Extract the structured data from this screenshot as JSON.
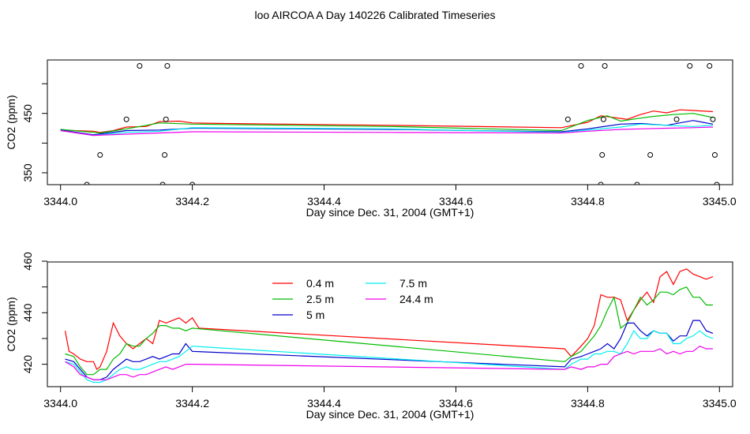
{
  "figure": {
    "title": "loo AIRCOA A  Day 140226  Calibrated Timeseries"
  },
  "chart_data": [
    {
      "type": "line",
      "panel": "top",
      "xlabel": "Day since Dec. 31, 2004 (GMT+1)",
      "ylabel": "CO2 (ppm)",
      "xlim": [
        3343.98,
        3345.02
      ],
      "ylim": [
        330,
        540
      ],
      "xticks": [
        "3344.0",
        "3344.2",
        "3344.4",
        "3344.6",
        "3344.8",
        "3345.0"
      ],
      "yticks": [
        {
          "v": 350,
          "label": "350"
        },
        {
          "v": 400,
          "label": ""
        },
        {
          "v": 450,
          "label": "450"
        },
        {
          "v": 500,
          "label": ""
        }
      ],
      "grid": false,
      "series": [
        {
          "color": "#ff0000",
          "x": [
            3344.0,
            3344.02,
            3344.05,
            3344.06,
            3344.08,
            3344.1,
            3344.13,
            3344.15,
            3344.18,
            3344.2,
            3344.25,
            3344.5,
            3344.76,
            3344.8,
            3344.82,
            3344.84,
            3344.86,
            3344.88,
            3344.9,
            3344.92,
            3344.94,
            3344.96,
            3344.99
          ],
          "y": [
            422,
            421,
            420,
            418,
            421,
            427,
            428,
            436,
            437,
            434,
            433,
            430,
            426,
            435,
            446,
            443,
            440,
            448,
            454,
            451,
            456,
            455,
            453
          ]
        },
        {
          "color": "#00bb00",
          "x": [
            3344.0,
            3344.03,
            3344.06,
            3344.1,
            3344.15,
            3344.2,
            3344.5,
            3344.76,
            3344.8,
            3344.83,
            3344.85,
            3344.88,
            3344.9,
            3344.93,
            3344.96,
            3344.99
          ],
          "y": [
            423,
            420,
            417,
            424,
            434,
            432,
            428,
            421,
            438,
            446,
            437,
            442,
            445,
            448,
            450,
            443
          ]
        },
        {
          "color": "#0000cc",
          "x": [
            3344.0,
            3344.05,
            3344.1,
            3344.15,
            3344.2,
            3344.5,
            3344.76,
            3344.8,
            3344.85,
            3344.88,
            3344.92,
            3344.96,
            3344.99
          ],
          "y": [
            422,
            414,
            421,
            422,
            425,
            423,
            419,
            424,
            432,
            433,
            430,
            438,
            432
          ]
        },
        {
          "color": "#00eeee",
          "x": [
            3344.0,
            3344.05,
            3344.1,
            3344.15,
            3344.2,
            3344.5,
            3344.76,
            3344.8,
            3344.85,
            3344.88,
            3344.92,
            3344.96,
            3344.99
          ],
          "y": [
            421,
            413,
            418,
            420,
            426,
            424,
            418,
            422,
            427,
            432,
            430,
            428,
            430
          ]
        },
        {
          "color": "#ee00ee",
          "x": [
            3344.0,
            3344.05,
            3344.1,
            3344.15,
            3344.2,
            3344.5,
            3344.76,
            3344.8,
            3344.85,
            3344.88,
            3344.92,
            3344.96,
            3344.99
          ],
          "y": [
            421,
            413,
            415,
            417,
            419,
            418,
            417,
            420,
            423,
            424,
            425,
            426,
            427
          ]
        }
      ],
      "points": {
        "x": [
          3344.04,
          3344.06,
          3344.1,
          3344.12,
          3344.155,
          3344.158,
          3344.16,
          3344.162,
          3344.2,
          3344.77,
          3344.79,
          3344.82,
          3344.822,
          3344.824,
          3344.826,
          3344.875,
          3344.895,
          3344.935,
          3344.955,
          3344.985,
          3344.99,
          3344.993,
          3344.996
        ],
        "y": [
          330,
          380,
          440,
          530,
          330,
          380,
          440,
          530,
          330,
          440,
          530,
          330,
          380,
          440,
          530,
          330,
          380,
          440,
          530,
          530,
          440,
          380,
          330
        ]
      }
    },
    {
      "type": "line",
      "panel": "bottom",
      "xlabel": "Day since Dec. 31, 2004 (GMT+1)",
      "ylabel": "CO2 (ppm)",
      "xlim": [
        3343.98,
        3345.02
      ],
      "ylim": [
        411.3,
        459.7
      ],
      "xticks": [
        "3344.0",
        "3344.2",
        "3344.4",
        "3344.6",
        "3344.8",
        "3345.0"
      ],
      "yticks": [
        {
          "v": 420,
          "label": "420"
        },
        {
          "v": 430,
          "label": ""
        },
        {
          "v": 440,
          "label": "440"
        },
        {
          "v": 450,
          "label": ""
        },
        {
          "v": 460,
          "label": "460"
        }
      ],
      "grid": false,
      "legend": {
        "placement": "top-left",
        "entries": [
          {
            "label": "0.4 m",
            "color": "#ff0000"
          },
          {
            "label": "2.5 m",
            "color": "#00bb00"
          },
          {
            "label": "5 m",
            "color": "#0000cc"
          },
          {
            "label": "7.5 m",
            "color": "#00eeee"
          },
          {
            "label": "24.4 m",
            "color": "#ee00ee"
          }
        ]
      },
      "series": [
        {
          "name": "0.4 m",
          "color": "#ff0000",
          "x": [
            3344.007,
            3344.013,
            3344.02,
            3344.03,
            3344.04,
            3344.05,
            3344.055,
            3344.06,
            3344.07,
            3344.08,
            3344.09,
            3344.1,
            3344.11,
            3344.12,
            3344.13,
            3344.14,
            3344.15,
            3344.16,
            3344.17,
            3344.18,
            3344.19,
            3344.2,
            3344.21,
            3344.765,
            3344.775,
            3344.79,
            3344.8,
            3344.81,
            3344.82,
            3344.83,
            3344.84,
            3344.85,
            3344.86,
            3344.87,
            3344.88,
            3344.89,
            3344.9,
            3344.91,
            3344.92,
            3344.93,
            3344.94,
            3344.95,
            3344.96,
            3344.97,
            3344.98,
            3344.99
          ],
          "y": [
            433,
            425,
            424,
            422,
            421,
            421,
            418,
            419,
            425,
            436,
            431,
            428,
            426,
            428,
            430,
            428,
            437,
            436,
            437,
            438,
            436,
            438,
            434,
            426,
            423,
            427,
            430,
            435,
            447,
            446,
            446,
            445,
            437,
            441,
            445,
            448,
            444,
            454,
            456,
            451,
            456,
            457,
            455,
            454,
            453,
            454
          ]
        },
        {
          "name": "2.5 m",
          "color": "#00bb00",
          "x": [
            3344.007,
            3344.02,
            3344.03,
            3344.04,
            3344.05,
            3344.06,
            3344.07,
            3344.08,
            3344.09,
            3344.1,
            3344.11,
            3344.12,
            3344.13,
            3344.14,
            3344.15,
            3344.16,
            3344.17,
            3344.18,
            3344.19,
            3344.2,
            3344.765,
            3344.775,
            3344.79,
            3344.8,
            3344.81,
            3344.82,
            3344.83,
            3344.84,
            3344.85,
            3344.86,
            3344.87,
            3344.88,
            3344.89,
            3344.9,
            3344.91,
            3344.92,
            3344.93,
            3344.94,
            3344.95,
            3344.96,
            3344.97,
            3344.98,
            3344.99
          ],
          "y": [
            424,
            423,
            419,
            416,
            416,
            418,
            418,
            422,
            424,
            428,
            427,
            427,
            430,
            432,
            435,
            435,
            434,
            434,
            433,
            434,
            421,
            423,
            425,
            428,
            431,
            435,
            441,
            446,
            434,
            436,
            441,
            446,
            443,
            445,
            448,
            448,
            447,
            449,
            450,
            446,
            446,
            443,
            443
          ]
        },
        {
          "name": "5 m",
          "color": "#0000cc",
          "x": [
            3344.007,
            3344.02,
            3344.03,
            3344.04,
            3344.05,
            3344.06,
            3344.07,
            3344.08,
            3344.09,
            3344.1,
            3344.11,
            3344.12,
            3344.13,
            3344.14,
            3344.15,
            3344.16,
            3344.17,
            3344.18,
            3344.19,
            3344.2,
            3344.765,
            3344.775,
            3344.79,
            3344.8,
            3344.81,
            3344.82,
            3344.83,
            3344.84,
            3344.85,
            3344.86,
            3344.87,
            3344.88,
            3344.89,
            3344.9,
            3344.91,
            3344.92,
            3344.93,
            3344.94,
            3344.95,
            3344.96,
            3344.97,
            3344.98,
            3344.99
          ],
          "y": [
            422,
            421,
            418,
            415,
            414,
            414,
            415,
            418,
            420,
            422,
            421,
            421,
            422,
            423,
            422,
            423,
            424,
            424,
            428,
            425,
            419,
            422,
            423,
            424,
            425,
            426,
            428,
            426,
            430,
            436,
            436,
            433,
            431,
            433,
            432,
            432,
            429,
            431,
            431,
            437,
            437,
            433,
            432
          ]
        },
        {
          "name": "7.5 m",
          "color": "#00eeee",
          "x": [
            3344.007,
            3344.02,
            3344.03,
            3344.04,
            3344.05,
            3344.06,
            3344.07,
            3344.08,
            3344.09,
            3344.1,
            3344.11,
            3344.12,
            3344.13,
            3344.14,
            3344.15,
            3344.16,
            3344.17,
            3344.18,
            3344.19,
            3344.2,
            3344.765,
            3344.775,
            3344.79,
            3344.8,
            3344.81,
            3344.82,
            3344.83,
            3344.84,
            3344.85,
            3344.86,
            3344.87,
            3344.88,
            3344.89,
            3344.9,
            3344.91,
            3344.92,
            3344.93,
            3344.94,
            3344.95,
            3344.96,
            3344.97,
            3344.98,
            3344.99
          ],
          "y": [
            421,
            420,
            417,
            414,
            413,
            413,
            414,
            416,
            418,
            419,
            418,
            418,
            419,
            420,
            421,
            421,
            422,
            423,
            425,
            427,
            418,
            420,
            422,
            422,
            424,
            424,
            425,
            425,
            424,
            428,
            433,
            430,
            430,
            433,
            432,
            432,
            428,
            428,
            430,
            431,
            433,
            431,
            430
          ]
        },
        {
          "name": "24.4 m",
          "color": "#ee00ee",
          "x": [
            3344.007,
            3344.02,
            3344.03,
            3344.04,
            3344.05,
            3344.06,
            3344.07,
            3344.08,
            3344.09,
            3344.1,
            3344.11,
            3344.12,
            3344.13,
            3344.14,
            3344.15,
            3344.16,
            3344.17,
            3344.18,
            3344.19,
            3344.2,
            3344.765,
            3344.775,
            3344.79,
            3344.8,
            3344.81,
            3344.82,
            3344.83,
            3344.84,
            3344.85,
            3344.86,
            3344.87,
            3344.88,
            3344.89,
            3344.9,
            3344.91,
            3344.92,
            3344.93,
            3344.94,
            3344.95,
            3344.96,
            3344.97,
            3344.98,
            3344.99
          ],
          "y": [
            421,
            419,
            416,
            415,
            414,
            414,
            414,
            415,
            416,
            416,
            415,
            416,
            416,
            417,
            418,
            419,
            418,
            419,
            420,
            420,
            418,
            419,
            418,
            419,
            419,
            420,
            420,
            423,
            424,
            425,
            424,
            425,
            425,
            425,
            426,
            424,
            425,
            424,
            425,
            425,
            427,
            426,
            426
          ]
        }
      ]
    }
  ]
}
